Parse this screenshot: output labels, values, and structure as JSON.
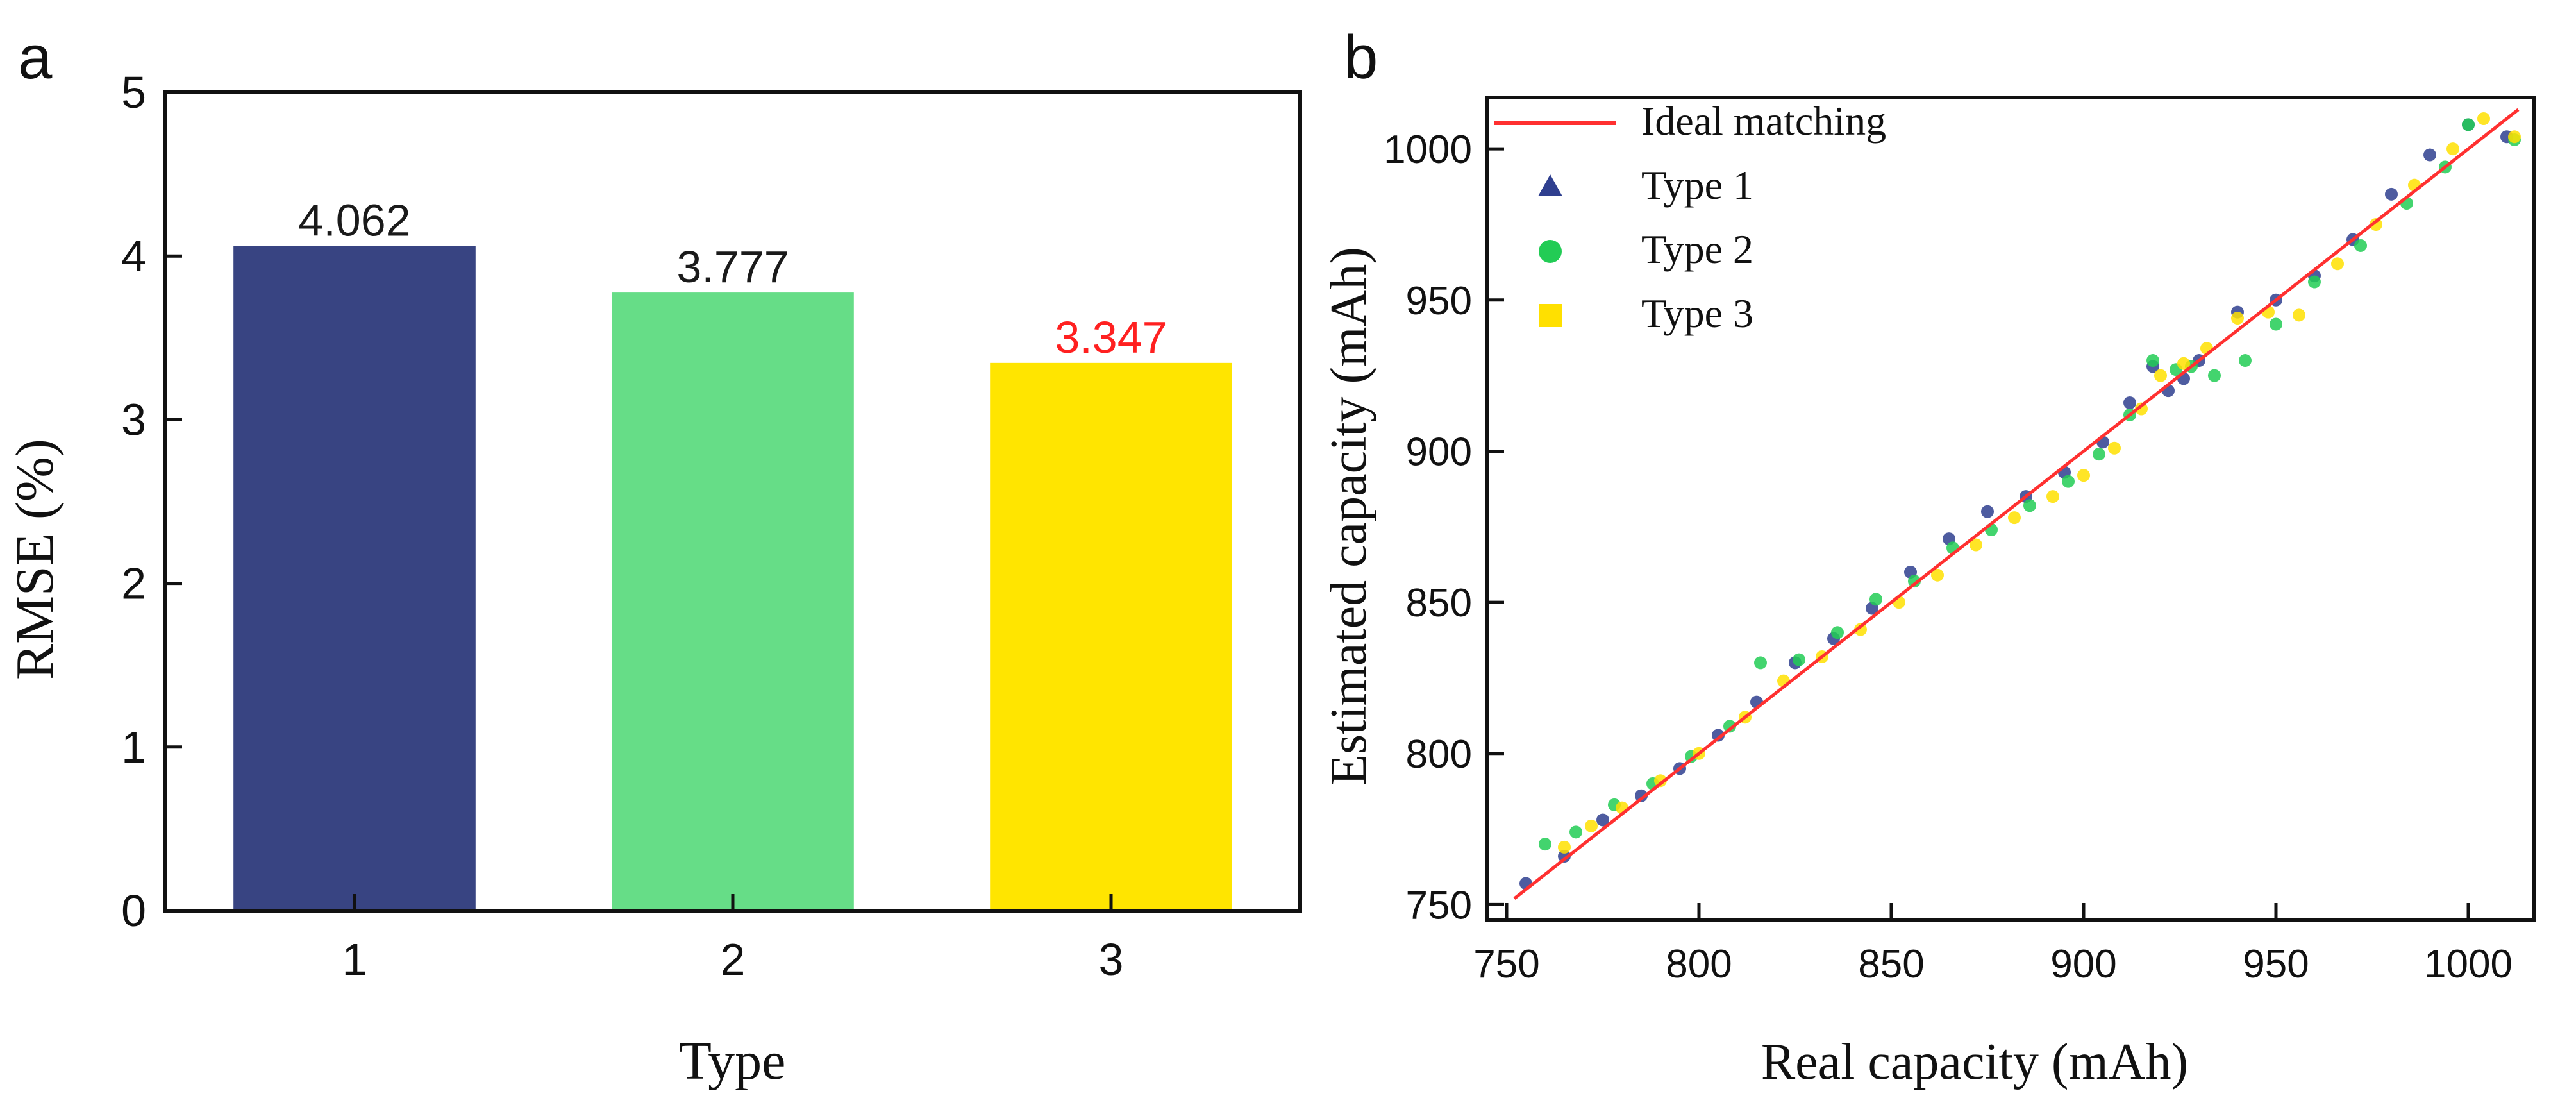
{
  "chart_data": [
    {
      "panel_label": "a",
      "type": "bar",
      "title": "",
      "xlabel": "Type",
      "ylabel": "RMSE (%)",
      "categories": [
        "1",
        "2",
        "3"
      ],
      "values": [
        4.062,
        3.777,
        3.347
      ],
      "value_labels": [
        "4.062",
        "3.777",
        "3.347"
      ],
      "ylim": [
        0,
        5
      ],
      "yticks": [
        "0",
        "1",
        "2",
        "3",
        "4",
        "5"
      ],
      "grid": false,
      "colors": [
        "#384482",
        "#66dd87",
        "#ffe500"
      ],
      "label_colors": [
        "#1a1a1a",
        "#1a1a1a",
        "#ff2020"
      ]
    },
    {
      "panel_label": "b",
      "type": "scatter",
      "title": "",
      "xlabel": "Real capacity (mAh)",
      "ylabel": "Estimated capacity (mAh)",
      "xlim": [
        745,
        1017
      ],
      "ylim": [
        745,
        1017
      ],
      "xticks": [
        "750",
        "800",
        "850",
        "900",
        "950",
        "1000"
      ],
      "yticks": [
        "750",
        "800",
        "850",
        "900",
        "950",
        "1000"
      ],
      "grid": false,
      "legend_position": "top-left",
      "legend": [
        {
          "name": "Ideal matching",
          "marker": "line",
          "color": "#ff3030"
        },
        {
          "name": "Type 1",
          "marker": "triangle",
          "color": "#2f3f8f"
        },
        {
          "name": "Type 2",
          "marker": "circle",
          "color": "#22cc55"
        },
        {
          "name": "Type 3",
          "marker": "square",
          "color": "#ffe000"
        }
      ],
      "ideal_line": {
        "x": [
          752,
          1013
        ],
        "y": [
          752,
          1013
        ]
      },
      "series": [
        {
          "name": "Type 1",
          "color": "#2f3f8f",
          "x": [
            755,
            765,
            775,
            785,
            795,
            805,
            815,
            825,
            835,
            845,
            855,
            865,
            875,
            885,
            895,
            905,
            912,
            918,
            922,
            926,
            930,
            940,
            950,
            960,
            970,
            980,
            990,
            1000,
            1010
          ],
          "y": [
            757,
            766,
            778,
            786,
            795,
            806,
            817,
            830,
            838,
            848,
            860,
            871,
            880,
            885,
            893,
            903,
            916,
            928,
            920,
            924,
            930,
            946,
            950,
            958,
            970,
            985,
            998,
            1008,
            1004
          ]
        },
        {
          "name": "Type 2",
          "color": "#22cc55",
          "x": [
            760,
            768,
            778,
            788,
            798,
            808,
            816,
            826,
            836,
            846,
            856,
            866,
            876,
            886,
            896,
            904,
            912,
            918,
            924,
            928,
            934,
            942,
            950,
            960,
            972,
            984,
            994,
            1000,
            1012
          ],
          "y": [
            770,
            774,
            783,
            790,
            799,
            809,
            830,
            831,
            840,
            851,
            857,
            868,
            874,
            882,
            890,
            899,
            912,
            930,
            927,
            928,
            925,
            930,
            942,
            956,
            968,
            982,
            994,
            1008,
            1003
          ]
        },
        {
          "name": "Type 3",
          "color": "#ffe000",
          "x": [
            765,
            772,
            780,
            790,
            800,
            812,
            822,
            832,
            842,
            852,
            862,
            872,
            882,
            892,
            900,
            908,
            915,
            920,
            926,
            932,
            940,
            948,
            956,
            966,
            976,
            986,
            996,
            1004,
            1012
          ],
          "y": [
            769,
            776,
            782,
            791,
            800,
            812,
            824,
            832,
            841,
            850,
            859,
            869,
            878,
            885,
            892,
            901,
            914,
            925,
            929,
            934,
            944,
            946,
            945,
            962,
            975,
            988,
            1000,
            1010,
            1004
          ]
        }
      ]
    }
  ]
}
